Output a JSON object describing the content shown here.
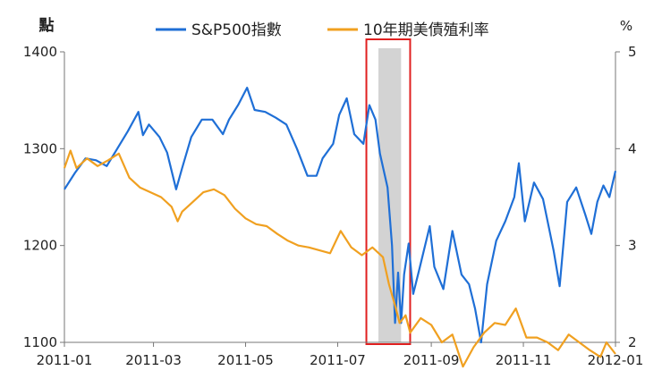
{
  "chart_data": {
    "type": "line",
    "left_axis_unit": "點",
    "right_axis_unit": "%",
    "x_ticks": [
      "2011-01",
      "2011-03",
      "2011-05",
      "2011-07",
      "2011-09",
      "2011-11",
      "2012-01"
    ],
    "x_range": [
      "2011-01-01",
      "2012-01-01"
    ],
    "left_ticks": [
      "1400",
      "1300",
      "1200",
      "1100"
    ],
    "left_range": [
      1100,
      1400
    ],
    "right_ticks": [
      "5",
      "4",
      "3",
      "2"
    ],
    "right_range": [
      2,
      5
    ],
    "highlight": {
      "start": "2011-07-28",
      "end": "2011-08-12",
      "color": "#d3d3d3"
    },
    "marker_box": {
      "start": "2011-07-20",
      "end": "2011-08-18",
      "color": "#e02020"
    },
    "series": [
      {
        "name": "S&P500指數",
        "axis": "left",
        "color": "#1f6fd6",
        "points": [
          [
            "2011-01-01",
            1258
          ],
          [
            "2011-01-08",
            1275
          ],
          [
            "2011-01-15",
            1290
          ],
          [
            "2011-01-22",
            1288
          ],
          [
            "2011-01-29",
            1282
          ],
          [
            "2011-02-05",
            1300
          ],
          [
            "2011-02-12",
            1318
          ],
          [
            "2011-02-19",
            1338
          ],
          [
            "2011-02-22",
            1314
          ],
          [
            "2011-02-26",
            1325
          ],
          [
            "2011-03-05",
            1312
          ],
          [
            "2011-03-10",
            1296
          ],
          [
            "2011-03-16",
            1258
          ],
          [
            "2011-03-20",
            1280
          ],
          [
            "2011-03-26",
            1312
          ],
          [
            "2011-04-02",
            1330
          ],
          [
            "2011-04-09",
            1330
          ],
          [
            "2011-04-16",
            1315
          ],
          [
            "2011-04-20",
            1330
          ],
          [
            "2011-04-26",
            1345
          ],
          [
            "2011-05-02",
            1363
          ],
          [
            "2011-05-07",
            1340
          ],
          [
            "2011-05-14",
            1338
          ],
          [
            "2011-05-21",
            1332
          ],
          [
            "2011-05-28",
            1325
          ],
          [
            "2011-06-04",
            1300
          ],
          [
            "2011-06-11",
            1272
          ],
          [
            "2011-06-17",
            1272
          ],
          [
            "2011-06-21",
            1290
          ],
          [
            "2011-06-28",
            1305
          ],
          [
            "2011-07-02",
            1335
          ],
          [
            "2011-07-07",
            1352
          ],
          [
            "2011-07-12",
            1315
          ],
          [
            "2011-07-18",
            1305
          ],
          [
            "2011-07-22",
            1345
          ],
          [
            "2011-07-26",
            1330
          ],
          [
            "2011-07-29",
            1295
          ],
          [
            "2011-08-03",
            1260
          ],
          [
            "2011-08-06",
            1200
          ],
          [
            "2011-08-08",
            1120
          ],
          [
            "2011-08-10",
            1172
          ],
          [
            "2011-08-12",
            1120
          ],
          [
            "2011-08-14",
            1170
          ],
          [
            "2011-08-17",
            1202
          ],
          [
            "2011-08-20",
            1150
          ],
          [
            "2011-08-24",
            1175
          ],
          [
            "2011-08-31",
            1220
          ],
          [
            "2011-09-03",
            1178
          ],
          [
            "2011-09-09",
            1155
          ],
          [
            "2011-09-15",
            1215
          ],
          [
            "2011-09-21",
            1170
          ],
          [
            "2011-09-26",
            1160
          ],
          [
            "2011-09-30",
            1135
          ],
          [
            "2011-10-04",
            1100
          ],
          [
            "2011-10-08",
            1160
          ],
          [
            "2011-10-14",
            1205
          ],
          [
            "2011-10-20",
            1225
          ],
          [
            "2011-10-26",
            1250
          ],
          [
            "2011-10-29",
            1285
          ],
          [
            "2011-11-02",
            1225
          ],
          [
            "2011-11-08",
            1265
          ],
          [
            "2011-11-14",
            1248
          ],
          [
            "2011-11-18",
            1218
          ],
          [
            "2011-11-21",
            1195
          ],
          [
            "2011-11-25",
            1158
          ],
          [
            "2011-11-30",
            1245
          ],
          [
            "2011-12-06",
            1260
          ],
          [
            "2011-12-12",
            1232
          ],
          [
            "2011-12-16",
            1212
          ],
          [
            "2011-12-20",
            1245
          ],
          [
            "2011-12-24",
            1262
          ],
          [
            "2011-12-28",
            1250
          ],
          [
            "2012-01-01",
            1277
          ]
        ]
      },
      {
        "name": "10年期美債殖利率",
        "axis": "right",
        "color": "#f0a020",
        "points": [
          [
            "2011-01-01",
            3.8
          ],
          [
            "2011-01-05",
            3.98
          ],
          [
            "2011-01-09",
            3.8
          ],
          [
            "2011-01-16",
            3.9
          ],
          [
            "2011-01-23",
            3.82
          ],
          [
            "2011-01-30",
            3.88
          ],
          [
            "2011-02-06",
            3.95
          ],
          [
            "2011-02-13",
            3.7
          ],
          [
            "2011-02-20",
            3.6
          ],
          [
            "2011-02-27",
            3.55
          ],
          [
            "2011-03-06",
            3.5
          ],
          [
            "2011-03-13",
            3.4
          ],
          [
            "2011-03-17",
            3.25
          ],
          [
            "2011-03-20",
            3.35
          ],
          [
            "2011-03-27",
            3.45
          ],
          [
            "2011-04-03",
            3.55
          ],
          [
            "2011-04-10",
            3.58
          ],
          [
            "2011-04-17",
            3.52
          ],
          [
            "2011-04-24",
            3.38
          ],
          [
            "2011-05-01",
            3.28
          ],
          [
            "2011-05-08",
            3.22
          ],
          [
            "2011-05-15",
            3.2
          ],
          [
            "2011-05-22",
            3.12
          ],
          [
            "2011-05-29",
            3.05
          ],
          [
            "2011-06-05",
            3.0
          ],
          [
            "2011-06-12",
            2.98
          ],
          [
            "2011-06-19",
            2.95
          ],
          [
            "2011-06-26",
            2.92
          ],
          [
            "2011-07-03",
            3.15
          ],
          [
            "2011-07-10",
            2.98
          ],
          [
            "2011-07-17",
            2.9
          ],
          [
            "2011-07-24",
            2.98
          ],
          [
            "2011-07-31",
            2.88
          ],
          [
            "2011-08-04",
            2.6
          ],
          [
            "2011-08-08",
            2.38
          ],
          [
            "2011-08-11",
            2.2
          ],
          [
            "2011-08-15",
            2.28
          ],
          [
            "2011-08-18",
            2.1
          ],
          [
            "2011-08-25",
            2.25
          ],
          [
            "2011-09-01",
            2.18
          ],
          [
            "2011-09-08",
            2.0
          ],
          [
            "2011-09-15",
            2.08
          ],
          [
            "2011-09-22",
            1.75
          ],
          [
            "2011-09-29",
            1.95
          ],
          [
            "2011-10-06",
            2.1
          ],
          [
            "2011-10-13",
            2.2
          ],
          [
            "2011-10-20",
            2.18
          ],
          [
            "2011-10-27",
            2.35
          ],
          [
            "2011-11-03",
            2.05
          ],
          [
            "2011-11-10",
            2.05
          ],
          [
            "2011-11-17",
            2.0
          ],
          [
            "2011-11-24",
            1.92
          ],
          [
            "2011-12-01",
            2.08
          ],
          [
            "2011-12-08",
            2.0
          ],
          [
            "2011-12-15",
            1.92
          ],
          [
            "2011-12-22",
            1.85
          ],
          [
            "2011-12-26",
            2.0
          ],
          [
            "2012-01-01",
            1.88
          ]
        ]
      }
    ]
  }
}
